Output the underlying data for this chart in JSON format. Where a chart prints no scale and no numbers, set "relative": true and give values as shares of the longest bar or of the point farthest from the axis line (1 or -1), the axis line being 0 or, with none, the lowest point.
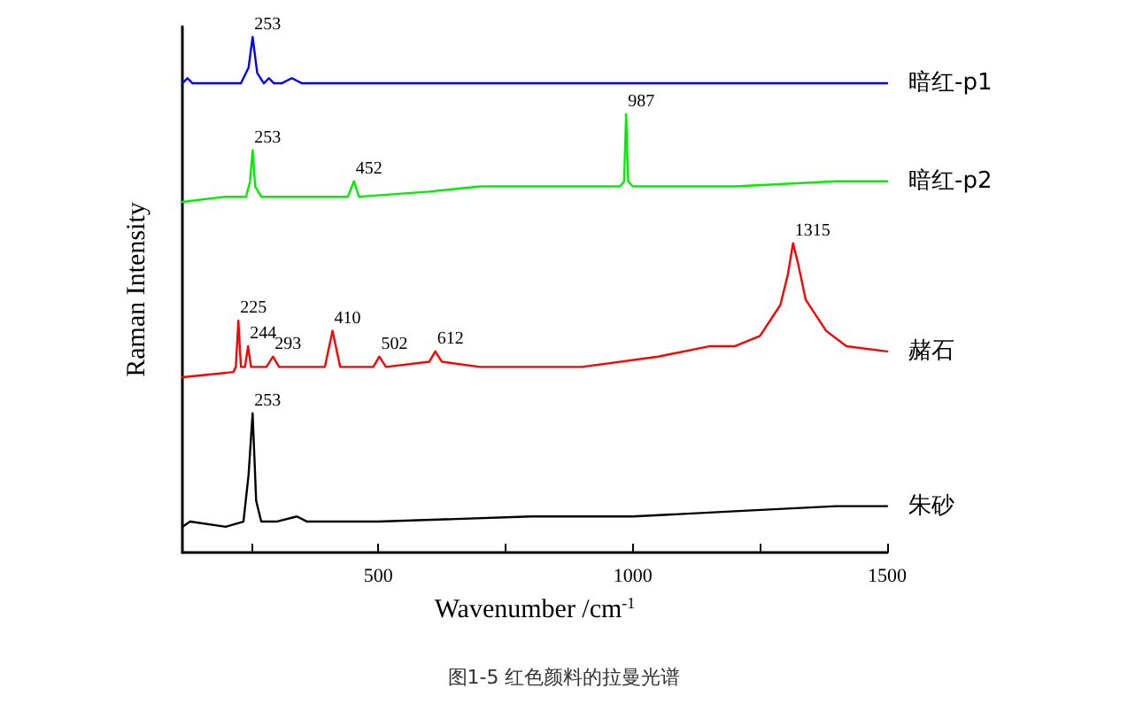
{
  "chart_data": {
    "type": "line",
    "relative": true,
    "xlabel": "Wavenumber /cm$^{-1}$",
    "ylabel": "Raman Intensity",
    "xlim": [
      115,
      1500
    ],
    "xticks": [
      {
        "value": 250,
        "label": null
      },
      500,
      {
        "value": 750,
        "label": null
      },
      1000,
      {
        "value": 1250,
        "label": null
      },
      1500
    ],
    "grid": false,
    "legend": false,
    "marker": "none",
    "line_style": "solid",
    "series": [
      {
        "name": "暗红-p1",
        "color": "#0000ff",
        "x": [
          115,
          125,
          135,
          230,
          245,
          253,
          262,
          275,
          285,
          295,
          310,
          330,
          350,
          400,
          600,
          800,
          1000,
          1200,
          1400,
          1500
        ],
        "values": [
          0.91,
          0.92,
          0.91,
          0.91,
          0.94,
          1.0,
          0.93,
          0.91,
          0.92,
          0.91,
          0.91,
          0.92,
          0.91,
          0.91,
          0.91,
          0.91,
          0.91,
          0.91,
          0.91,
          0.91
        ]
      },
      {
        "name": "暗红-p2",
        "color": "#00ee00",
        "x": [
          115,
          200,
          240,
          248,
          253,
          258,
          270,
          300,
          440,
          452,
          462,
          600,
          700,
          975,
          983,
          987,
          991,
          1000,
          1200,
          1400,
          1500
        ],
        "values": [
          0.68,
          0.69,
          0.69,
          0.72,
          0.78,
          0.71,
          0.69,
          0.69,
          0.69,
          0.72,
          0.69,
          0.7,
          0.71,
          0.71,
          0.72,
          0.85,
          0.72,
          0.71,
          0.71,
          0.72,
          0.72
        ]
      },
      {
        "name": "赭石",
        "color": "#ff0000",
        "x": [
          115,
          215,
          220,
          225,
          230,
          238,
          244,
          250,
          280,
          293,
          305,
          395,
          410,
          425,
          490,
          502,
          515,
          600,
          612,
          625,
          700,
          900,
          1050,
          1150,
          1200,
          1250,
          1290,
          1305,
          1315,
          1325,
          1340,
          1380,
          1420,
          1500
        ],
        "values": [
          0.34,
          0.35,
          0.36,
          0.45,
          0.36,
          0.36,
          0.4,
          0.36,
          0.36,
          0.38,
          0.36,
          0.36,
          0.43,
          0.36,
          0.36,
          0.38,
          0.36,
          0.37,
          0.39,
          0.37,
          0.36,
          0.36,
          0.38,
          0.4,
          0.4,
          0.42,
          0.48,
          0.54,
          0.6,
          0.56,
          0.49,
          0.43,
          0.4,
          0.39
        ]
      },
      {
        "name": "朱砂",
        "color": "#000000",
        "x": [
          115,
          130,
          200,
          235,
          245,
          253,
          260,
          270,
          300,
          340,
          360,
          500,
          800,
          1000,
          1200,
          1400,
          1500
        ],
        "values": [
          0.05,
          0.06,
          0.05,
          0.06,
          0.15,
          0.27,
          0.1,
          0.06,
          0.06,
          0.07,
          0.06,
          0.06,
          0.07,
          0.07,
          0.08,
          0.09,
          0.09
        ]
      }
    ],
    "annotations": [
      {
        "text": "253",
        "x": 253,
        "y": 1.0
      },
      {
        "text": "253",
        "x": 253,
        "y": 0.78
      },
      {
        "text": "452",
        "x": 452,
        "y": 0.72
      },
      {
        "text": "987",
        "x": 987,
        "y": 0.85
      },
      {
        "text": "225",
        "x": 225,
        "y": 0.45
      },
      {
        "text": "244",
        "x": 244,
        "y": 0.4
      },
      {
        "text": "293",
        "x": 293,
        "y": 0.38
      },
      {
        "text": "410",
        "x": 410,
        "y": 0.43
      },
      {
        "text": "502",
        "x": 502,
        "y": 0.38
      },
      {
        "text": "612",
        "x": 612,
        "y": 0.39
      },
      {
        "text": "1315",
        "x": 1315,
        "y": 0.6
      },
      {
        "text": "253",
        "x": 253,
        "y": 0.27
      },
      "图1-5 红色颜料的拉曼光谱"
    ]
  }
}
